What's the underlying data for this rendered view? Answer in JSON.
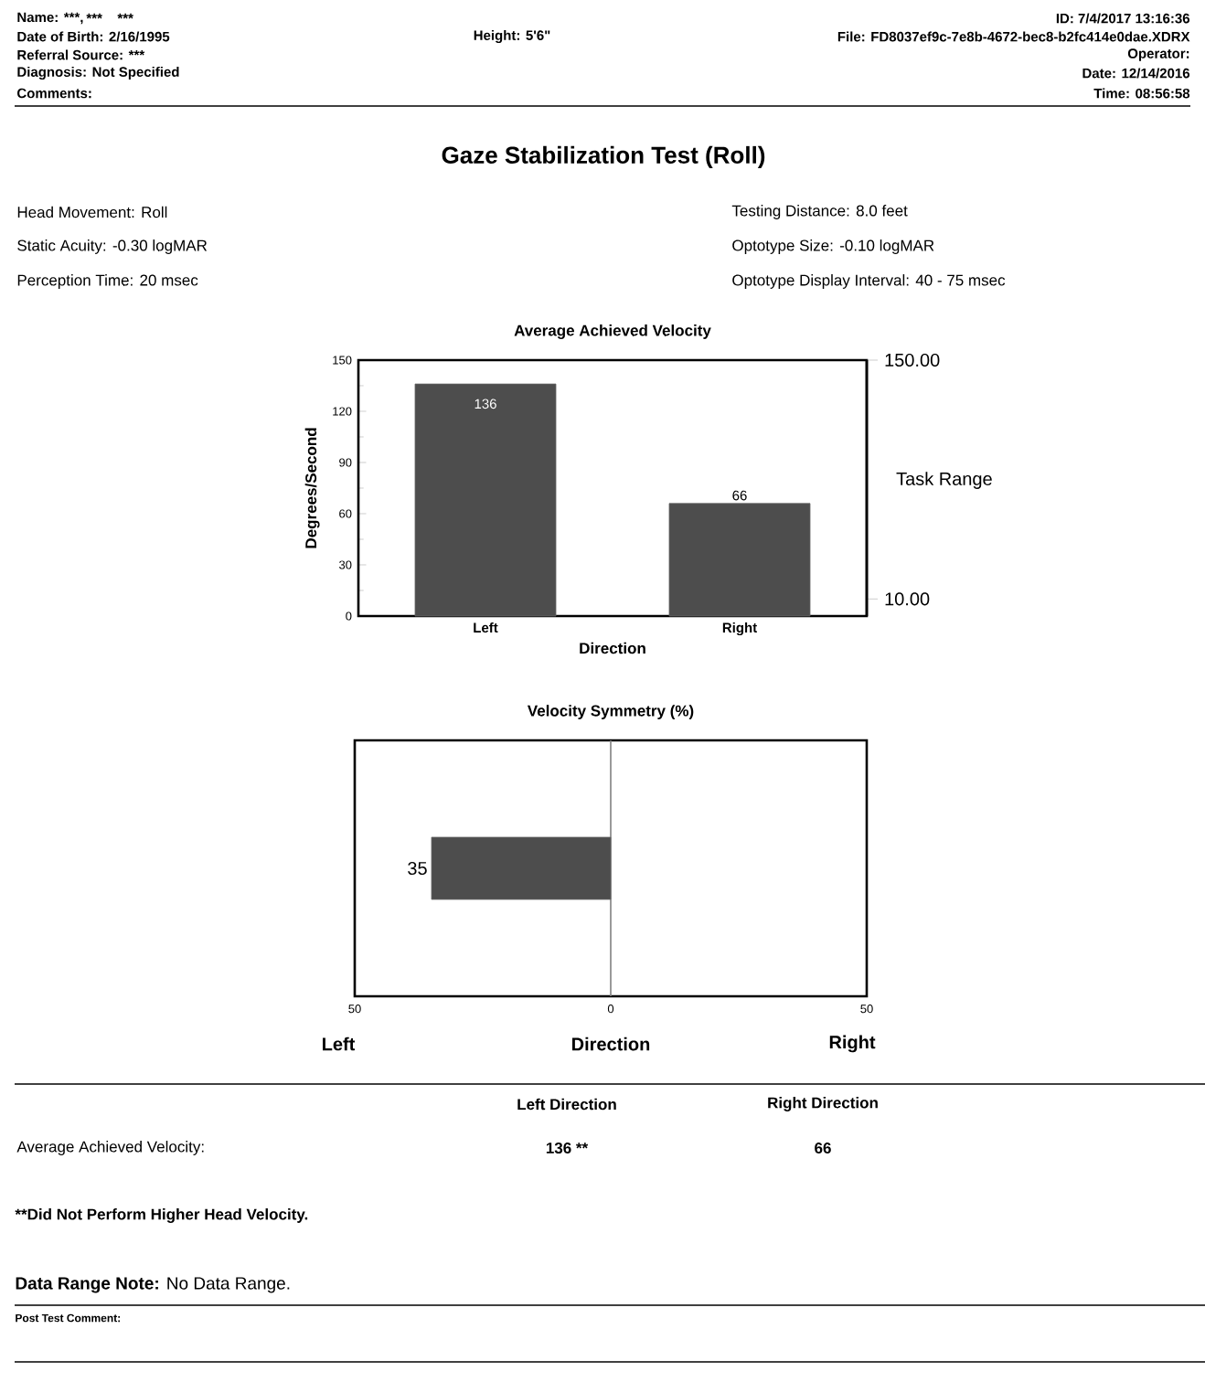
{
  "chart_data": [
    {
      "type": "bar",
      "title": "Average Achieved Velocity",
      "categories": [
        "Left",
        "Right"
      ],
      "values": [
        136,
        66
      ],
      "color": "#4d4d4d",
      "data_labels": true,
      "xlabel": "Direction",
      "ylabel": "Degrees/Second",
      "ylim": [
        0,
        150
      ],
      "yticks": [
        0,
        30,
        60,
        90,
        120,
        150
      ],
      "y2label": "Task Range",
      "y2lim": [
        0,
        150
      ],
      "y2ticks": [
        {
          "value": 150,
          "label": "150.00"
        },
        {
          "value": 10,
          "label": "10.00"
        }
      ],
      "annotations": [
        "Name: ***,",
        "***",
        "***",
        "Date of Birth: 2/16/1995",
        "Referral Source: ***",
        "Diagnosis: Not Specified",
        "Comments:",
        "Height: 5'6\"",
        "ID: 7/4/2017 13:16:36",
        "File: FD8037ef9c-7e8b-4672-bec8-b2fc414e0dae.XDRX",
        "Operator:",
        "Date: 12/14/2016",
        "Time: 08:56:58",
        "Gaze Stabilization Test (Roll)",
        "Head Movement: Roll",
        "Static Acuity: -0.30 logMAR",
        "Perception Time: 20 msec",
        "Testing Distance: 8.0 feet",
        "Optotype Size: -0.10 logMAR",
        "Optotype Display Interval: 40 - 75 msec"
      ]
    },
    {
      "type": "bar",
      "orientation": "horizontal",
      "title": "Velocity Symmetry (%)",
      "categories": [
        null
      ],
      "values": [
        35
      ],
      "data_labels": true,
      "color": "#4d4d4d",
      "xlabel": "Direction",
      "xlim": [
        50,
        -50
      ],
      "xticks": [
        50,
        0,
        {
          "value": -50,
          "label": "50"
        }
      ],
      "ref_lines": [
        {
          "axis": "x",
          "value": 0,
          "color": "#808080"
        }
      ],
      "annotations": [
        "Left",
        "Right",
        "Left Direction",
        "Right Direction",
        "Average Achieved Velocity:",
        "136 **",
        "66",
        "**Did Not Perform Higher Head Velocity.",
        "**Data Range Note:** No Data Range.",
        "Post Test Comment:"
      ]
    }
  ]
}
